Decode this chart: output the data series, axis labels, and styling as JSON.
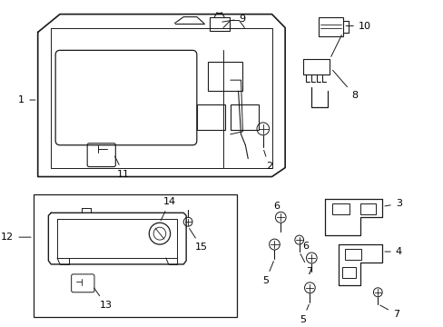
{
  "bg_color": "#ffffff",
  "line_color": "#1a1a1a",
  "fig_w": 4.89,
  "fig_h": 3.6,
  "dpi": 100
}
